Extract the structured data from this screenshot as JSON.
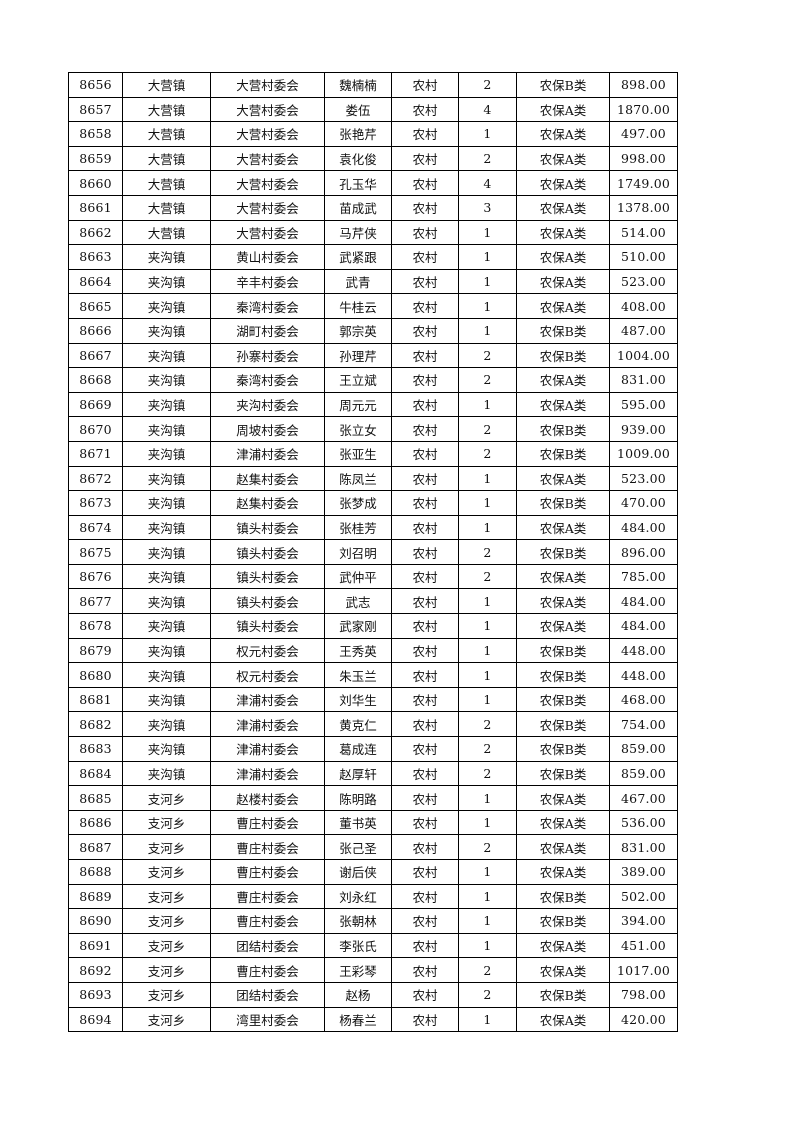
{
  "rows": [
    [
      "8656",
      "大营镇",
      "大营村委会",
      "魏楠楠",
      "农村",
      "2",
      "农保B类",
      "898.00"
    ],
    [
      "8657",
      "大营镇",
      "大营村委会",
      "娄伍",
      "农村",
      "4",
      "农保A类",
      "1870.00"
    ],
    [
      "8658",
      "大营镇",
      "大营村委会",
      "张艳芹",
      "农村",
      "1",
      "农保A类",
      "497.00"
    ],
    [
      "8659",
      "大营镇",
      "大营村委会",
      "袁化俊",
      "农村",
      "2",
      "农保A类",
      "998.00"
    ],
    [
      "8660",
      "大营镇",
      "大营村委会",
      "孔玉华",
      "农村",
      "4",
      "农保A类",
      "1749.00"
    ],
    [
      "8661",
      "大营镇",
      "大营村委会",
      "苗成武",
      "农村",
      "3",
      "农保A类",
      "1378.00"
    ],
    [
      "8662",
      "大营镇",
      "大营村委会",
      "马芹侠",
      "农村",
      "1",
      "农保A类",
      "514.00"
    ],
    [
      "8663",
      "夹沟镇",
      "黄山村委会",
      "武紧跟",
      "农村",
      "1",
      "农保A类",
      "510.00"
    ],
    [
      "8664",
      "夹沟镇",
      "辛丰村委会",
      "武青",
      "农村",
      "1",
      "农保A类",
      "523.00"
    ],
    [
      "8665",
      "夹沟镇",
      "秦湾村委会",
      "牛桂云",
      "农村",
      "1",
      "农保A类",
      "408.00"
    ],
    [
      "8666",
      "夹沟镇",
      "湖町村委会",
      "郭宗英",
      "农村",
      "1",
      "农保B类",
      "487.00"
    ],
    [
      "8667",
      "夹沟镇",
      "孙寨村委会",
      "孙理芹",
      "农村",
      "2",
      "农保B类",
      "1004.00"
    ],
    [
      "8668",
      "夹沟镇",
      "秦湾村委会",
      "王立斌",
      "农村",
      "2",
      "农保A类",
      "831.00"
    ],
    [
      "8669",
      "夹沟镇",
      "夹沟村委会",
      "周元元",
      "农村",
      "1",
      "农保A类",
      "595.00"
    ],
    [
      "8670",
      "夹沟镇",
      "周坡村委会",
      "张立女",
      "农村",
      "2",
      "农保B类",
      "939.00"
    ],
    [
      "8671",
      "夹沟镇",
      "津浦村委会",
      "张亚生",
      "农村",
      "2",
      "农保B类",
      "1009.00"
    ],
    [
      "8672",
      "夹沟镇",
      "赵集村委会",
      "陈凤兰",
      "农村",
      "1",
      "农保A类",
      "523.00"
    ],
    [
      "8673",
      "夹沟镇",
      "赵集村委会",
      "张梦成",
      "农村",
      "1",
      "农保B类",
      "470.00"
    ],
    [
      "8674",
      "夹沟镇",
      "镇头村委会",
      "张桂芳",
      "农村",
      "1",
      "农保A类",
      "484.00"
    ],
    [
      "8675",
      "夹沟镇",
      "镇头村委会",
      "刘召明",
      "农村",
      "2",
      "农保B类",
      "896.00"
    ],
    [
      "8676",
      "夹沟镇",
      "镇头村委会",
      "武仲平",
      "农村",
      "2",
      "农保A类",
      "785.00"
    ],
    [
      "8677",
      "夹沟镇",
      "镇头村委会",
      "武志",
      "农村",
      "1",
      "农保A类",
      "484.00"
    ],
    [
      "8678",
      "夹沟镇",
      "镇头村委会",
      "武家刚",
      "农村",
      "1",
      "农保A类",
      "484.00"
    ],
    [
      "8679",
      "夹沟镇",
      "权元村委会",
      "王秀英",
      "农村",
      "1",
      "农保B类",
      "448.00"
    ],
    [
      "8680",
      "夹沟镇",
      "权元村委会",
      "朱玉兰",
      "农村",
      "1",
      "农保B类",
      "448.00"
    ],
    [
      "8681",
      "夹沟镇",
      "津浦村委会",
      "刘华生",
      "农村",
      "1",
      "农保B类",
      "468.00"
    ],
    [
      "8682",
      "夹沟镇",
      "津浦村委会",
      "黄克仁",
      "农村",
      "2",
      "农保B类",
      "754.00"
    ],
    [
      "8683",
      "夹沟镇",
      "津浦村委会",
      "葛成连",
      "农村",
      "2",
      "农保B类",
      "859.00"
    ],
    [
      "8684",
      "夹沟镇",
      "津浦村委会",
      "赵厚轩",
      "农村",
      "2",
      "农保B类",
      "859.00"
    ],
    [
      "8685",
      "支河乡",
      "赵楼村委会",
      "陈明路",
      "农村",
      "1",
      "农保A类",
      "467.00"
    ],
    [
      "8686",
      "支河乡",
      "曹庄村委会",
      "董书英",
      "农村",
      "1",
      "农保A类",
      "536.00"
    ],
    [
      "8687",
      "支河乡",
      "曹庄村委会",
      "张己圣",
      "农村",
      "2",
      "农保A类",
      "831.00"
    ],
    [
      "8688",
      "支河乡",
      "曹庄村委会",
      "谢后侠",
      "农村",
      "1",
      "农保A类",
      "389.00"
    ],
    [
      "8689",
      "支河乡",
      "曹庄村委会",
      "刘永红",
      "农村",
      "1",
      "农保B类",
      "502.00"
    ],
    [
      "8690",
      "支河乡",
      "曹庄村委会",
      "张朝林",
      "农村",
      "1",
      "农保B类",
      "394.00"
    ],
    [
      "8691",
      "支河乡",
      "团结村委会",
      "李张氏",
      "农村",
      "1",
      "农保A类",
      "451.00"
    ],
    [
      "8692",
      "支河乡",
      "曹庄村委会",
      "王彩琴",
      "农村",
      "2",
      "农保A类",
      "1017.00"
    ],
    [
      "8693",
      "支河乡",
      "团结村委会",
      "赵杨",
      "农村",
      "2",
      "农保B类",
      "798.00"
    ],
    [
      "8694",
      "支河乡",
      "湾里村委会",
      "杨春兰",
      "农村",
      "1",
      "农保A类",
      "420.00"
    ]
  ]
}
